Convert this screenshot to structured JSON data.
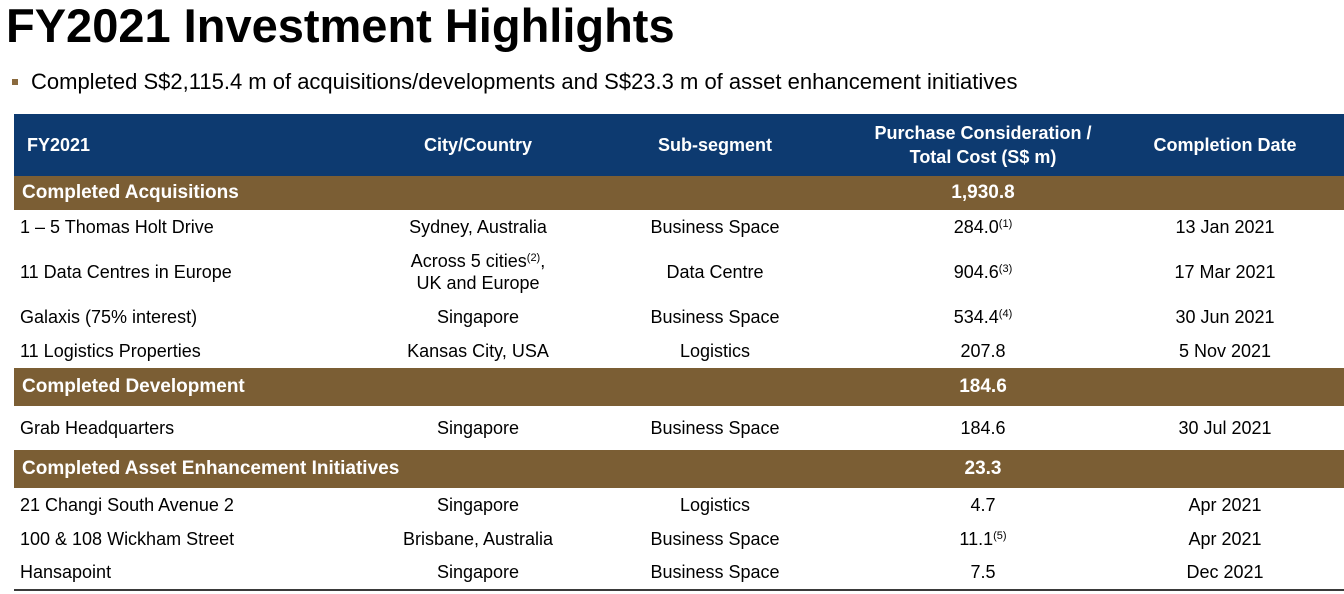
{
  "title": "FY2021 Investment Highlights",
  "bullet": "Completed S$2,115.4 m of acquisitions/developments and S$23.3 m of asset enhancement initiatives",
  "colors": {
    "header_bg": "#0d3a70",
    "section_bg": "#7b5e34",
    "bullet": "#8a6a3e"
  },
  "table": {
    "headers": {
      "fy": "FY2021",
      "city": "City/Country",
      "subsegment": "Sub-segment",
      "cost_line1": "Purchase Consideration /",
      "cost_line2": "Total Cost (S$ m)",
      "date": "Completion Date"
    },
    "sections": [
      {
        "label": "Completed Acquisitions",
        "total": "1,930.8",
        "rows": [
          {
            "name": "1 – 5 Thomas Holt Drive",
            "city": "Sydney, Australia",
            "subsegment": "Business Space",
            "cost": "284.0",
            "note": "(1)",
            "date": "13 Jan 2021"
          },
          {
            "name": "11 Data Centres in Europe",
            "city_line1": "Across 5 cities",
            "city_note": "(2)",
            "city_line1_tail": ",",
            "city_line2": "UK and Europe",
            "subsegment": "Data Centre",
            "cost": "904.6",
            "note": "(3)",
            "date": "17 Mar 2021"
          },
          {
            "name": "Galaxis (75% interest)",
            "city": "Singapore",
            "subsegment": "Business Space",
            "cost": "534.4",
            "note": "(4)",
            "date": "30 Jun 2021"
          },
          {
            "name": "11 Logistics Properties",
            "city": "Kansas City, USA",
            "subsegment": "Logistics",
            "cost": "207.8",
            "date": "5 Nov 2021"
          }
        ]
      },
      {
        "label": "Completed Development",
        "total": "184.6",
        "rows": [
          {
            "name": "Grab Headquarters",
            "city": "Singapore",
            "subsegment": "Business Space",
            "cost": "184.6",
            "date": "30 Jul 2021"
          }
        ]
      },
      {
        "label": "Completed Asset Enhancement Initiatives",
        "total": "23.3",
        "rows": [
          {
            "name": "21 Changi South Avenue 2",
            "city": "Singapore",
            "subsegment": "Logistics",
            "cost": "4.7",
            "date": "Apr 2021"
          },
          {
            "name": "100 & 108 Wickham Street",
            "city": "Brisbane, Australia",
            "subsegment": "Business Space",
            "cost": "11.1",
            "note": "(5)",
            "date": "Apr 2021"
          },
          {
            "name": "Hansapoint",
            "city": "Singapore",
            "subsegment": "Business Space",
            "cost": "7.5",
            "date": "Dec 2021"
          }
        ]
      }
    ]
  }
}
